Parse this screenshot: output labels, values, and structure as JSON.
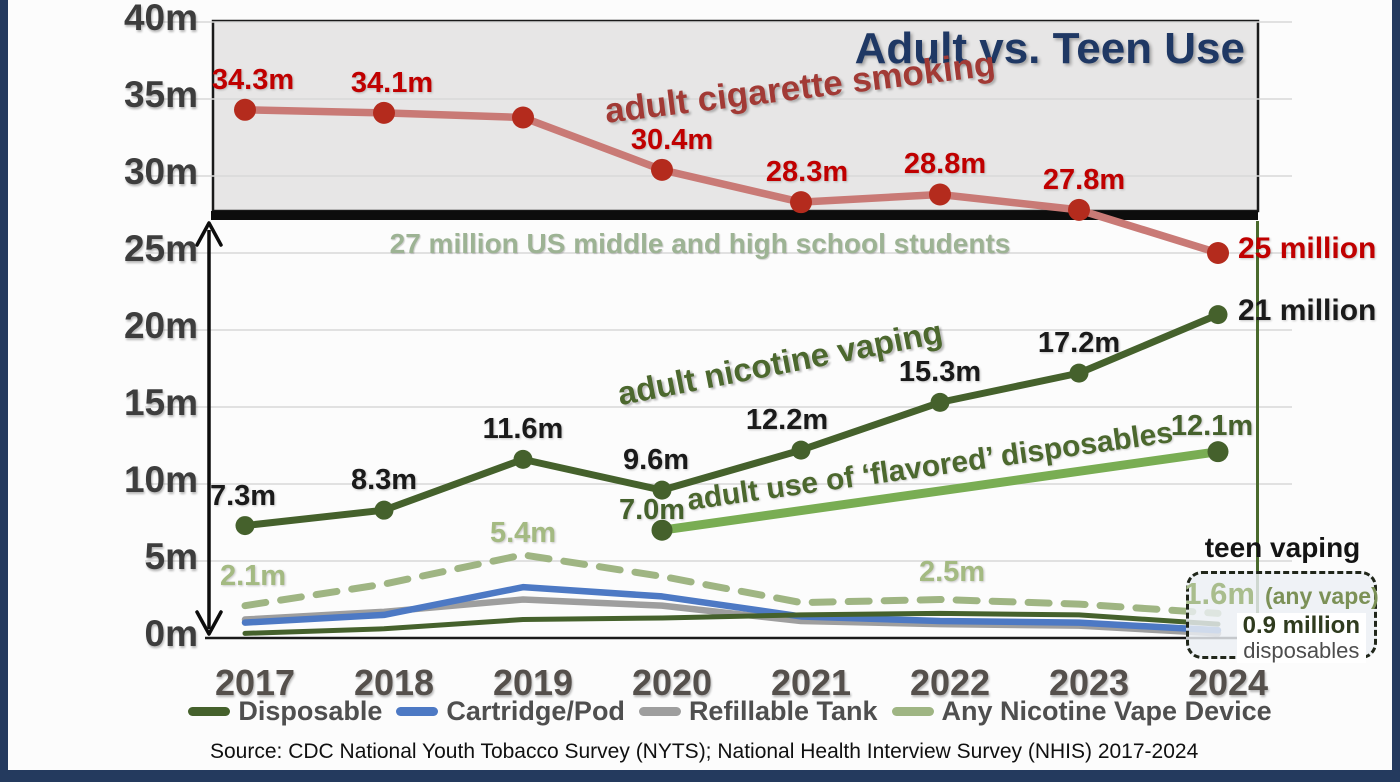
{
  "title": "Adult vs. Teen Use",
  "annotations": {
    "adult_cigarette_smoking": "adult cigarette smoking",
    "adult_nicotine_vaping": "adult nicotine vaping",
    "adult_flavored_disposables": "adult use of ‘flavored’ disposables",
    "teen_vaping": "teen vaping",
    "students_line": "27 million US middle and high school students"
  },
  "teen_box": {
    "any_vape_value": "1.6m",
    "any_vape_suffix": "(any vape)",
    "disposables_value": "0.9 million",
    "disposables_suffix": "disposables"
  },
  "source": "Source:  CDC National Youth Tobacco Survey (NYTS); National Health Interview Survey (NHIS) 2017-2024",
  "legend": [
    {
      "label": "Disposable",
      "color": "#45612c"
    },
    {
      "label": "Cartridge/Pod",
      "color": "#4d79c4"
    },
    {
      "label": "Refillable Tank",
      "color": "#9e9e9e"
    },
    {
      "label": "Any Nicotine Vape Device",
      "color": "#9fb583"
    }
  ],
  "colors": {
    "frame": "#243a5e",
    "title": "#1f3864",
    "adult_band_fill": "#e7e6e6",
    "reference_bar": "#0d0d0d",
    "vertical_2024_line": "#4a6a2d"
  },
  "chart_data": {
    "type": "line",
    "x_years": [
      2017,
      2018,
      2019,
      2020,
      2021,
      2022,
      2023,
      2024
    ],
    "ylim": [
      0,
      40
    ],
    "ytick_step": 5,
    "ytick_labels": [
      "0m",
      "5m",
      "10m",
      "15m",
      "20m",
      "25m",
      "30m",
      "35m",
      "40m"
    ],
    "grid": true,
    "legend_position": "bottom",
    "adult_band": {
      "from": 27,
      "to": 40,
      "fill": "#e7e6e6"
    },
    "reference_line": {
      "value": 27,
      "label": "27 million US middle and high school students"
    },
    "series": [
      {
        "id": "adult_cigarette_smoking",
        "name": "adult cigarette smoking",
        "group": "adult (NHIS)",
        "color": "#c97a76",
        "dot_color": "#b42b1d",
        "label_color": "#c00000",
        "width": 7.5,
        "dots": "all",
        "values": [
          34.3,
          34.1,
          33.8,
          30.4,
          28.3,
          28.8,
          27.8,
          25.0
        ],
        "point_labels": [
          {
            "i": 0,
            "text": "34.3m",
            "dx": 8
          },
          {
            "i": 1,
            "text": "34.1m",
            "dx": 8
          },
          {
            "i": 3,
            "text": "30.4m",
            "dx": 10
          },
          {
            "i": 4,
            "text": "28.3m",
            "dx": 6
          },
          {
            "i": 5,
            "text": "28.8m",
            "dx": 5
          },
          {
            "i": 6,
            "text": "27.8m",
            "dx": 5
          },
          {
            "i": 7,
            "text": "25 million",
            "pos": "right"
          }
        ]
      },
      {
        "id": "adult_nicotine_vaping",
        "name": "adult nicotine vaping",
        "group": "adult (NHIS)",
        "color": "#45612c",
        "dot_color": "#45612c",
        "label_color": "#1a1a1a",
        "width": 7,
        "dots": "all",
        "values": [
          7.3,
          8.3,
          11.6,
          9.6,
          12.2,
          15.3,
          17.2,
          21.0
        ],
        "point_labels": [
          {
            "i": 0,
            "text": "7.3m",
            "dx": -2
          },
          {
            "i": 1,
            "text": "8.3m"
          },
          {
            "i": 2,
            "text": "11.6m"
          },
          {
            "i": 3,
            "text": "9.6m",
            "dx": -6
          },
          {
            "i": 4,
            "text": "12.2m",
            "dx": -14
          },
          {
            "i": 5,
            "text": "15.3m"
          },
          {
            "i": 6,
            "text": "17.2m"
          },
          {
            "i": 7,
            "text": "21 million",
            "pos": "right"
          }
        ]
      },
      {
        "id": "adult_flavored_disposables",
        "name": "adult use of ‘flavored’ disposables",
        "group": "adult (NHIS)",
        "shape": "straight segment 2020→2024",
        "color": "#79ad53",
        "dot_color": "#45612c",
        "label_color": "#45612c",
        "width": 9,
        "dots": "defined",
        "values": [
          null,
          null,
          null,
          7.0,
          null,
          null,
          null,
          12.1
        ],
        "point_labels": [
          {
            "i": 3,
            "text": "7.0m",
            "dx": -10,
            "dy": 10
          },
          {
            "i": 7,
            "text": "12.1m",
            "dx": -6,
            "dy": 4
          }
        ]
      },
      {
        "id": "teen_any_vape",
        "name": "Any Nicotine Vape Device",
        "group": "teen (NYTS)",
        "color": "#9fb583",
        "label_color": "#a4ba82",
        "width": 7,
        "dash": "21 15",
        "values": [
          2.1,
          3.5,
          5.4,
          4.0,
          2.3,
          2.5,
          2.2,
          1.6
        ],
        "point_labels": [
          {
            "i": 0,
            "text": "2.1m",
            "dx": 8
          },
          {
            "i": 2,
            "text": "5.4m",
            "dy": 8
          },
          {
            "i": 5,
            "text": "2.5m",
            "dx": 12,
            "dy": 2
          }
        ]
      },
      {
        "id": "teen_cartridge_pod",
        "name": "Cartridge/Pod",
        "group": "teen (NYTS)",
        "color": "#4d79c4",
        "width": 6.5,
        "values": [
          1.0,
          1.5,
          3.3,
          2.7,
          1.4,
          1.1,
          1.0,
          0.5
        ]
      },
      {
        "id": "teen_refillable_tank",
        "name": "Refillable Tank",
        "group": "teen (NYTS)",
        "color": "#9e9e9e",
        "width": 6.5,
        "values": [
          1.2,
          1.7,
          2.5,
          2.1,
          1.1,
          0.9,
          0.8,
          0.3
        ]
      },
      {
        "id": "teen_disposable",
        "name": "Disposable",
        "group": "teen (NYTS)",
        "color": "#45612c",
        "width": 5,
        "values": [
          0.3,
          0.6,
          1.2,
          1.3,
          1.5,
          1.6,
          1.5,
          0.9
        ]
      }
    ]
  }
}
